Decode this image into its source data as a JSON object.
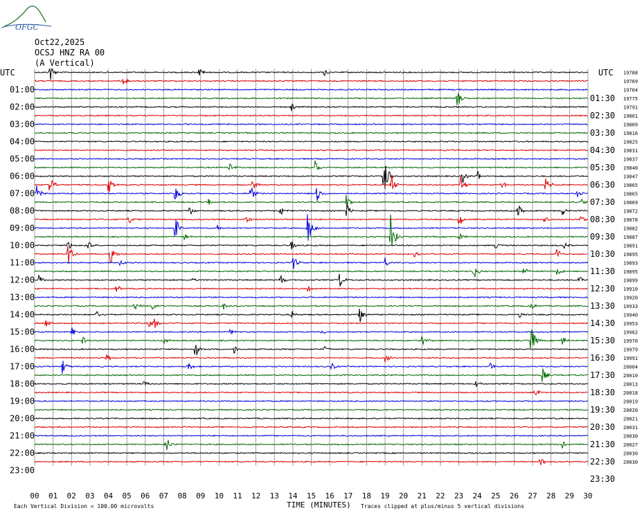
{
  "header": {
    "logo_text": "OFGC",
    "date": "Oct22,2025",
    "station": "OCSJ HNZ RA 00",
    "component": "(A Vertical)"
  },
  "chart_data": {
    "type": "line",
    "title": "",
    "left_axis_label": "UTC",
    "right_axis_label": "UTC",
    "xlabel": "TIME (MINUTES)",
    "xlim": [
      0,
      30
    ],
    "x_ticks": [
      "00",
      "01",
      "02",
      "03",
      "04",
      "05",
      "06",
      "07",
      "08",
      "09",
      "10",
      "11",
      "12",
      "13",
      "14",
      "15",
      "16",
      "17",
      "18",
      "19",
      "20",
      "21",
      "22",
      "23",
      "24",
      "25",
      "26",
      "27",
      "28",
      "29",
      "30"
    ],
    "grid": true,
    "trace_colors": [
      "#000000",
      "#dd0000",
      "#0000dd",
      "#006600"
    ],
    "left_hour_labels": [
      "01:00",
      "02:00",
      "03:00",
      "04:00",
      "05:00",
      "06:00",
      "07:00",
      "08:00",
      "09:00",
      "10:00",
      "11:00",
      "12:00",
      "13:00",
      "14:00",
      "15:00",
      "16:00",
      "17:00",
      "18:00",
      "19:00",
      "20:00",
      "21:00",
      "22:00",
      "23:00"
    ],
    "right_hour_labels": [
      "01:30",
      "02:30",
      "03:30",
      "04:30",
      "05:30",
      "06:30",
      "07:30",
      "08:30",
      "09:30",
      "10:30",
      "11:30",
      "12:30",
      "13:30",
      "14:30",
      "15:30",
      "16:30",
      "17:30",
      "18:30",
      "19:30",
      "20:30",
      "21:30",
      "22:30",
      "23:30"
    ],
    "trace_counts": [
      "19788",
      "19769",
      "19764",
      "19775",
      "19791",
      "19801",
      "19809",
      "19816",
      "19825",
      "19831",
      "19837",
      "19840",
      "19847",
      "19865",
      "19865",
      "19869",
      "19872",
      "19878",
      "19882",
      "19887",
      "19891",
      "19895",
      "19893",
      "19895",
      "19899",
      "19910",
      "19920",
      "19933",
      "19940",
      "19953",
      "19962",
      "19970",
      "19979",
      "19991",
      "20004",
      "20010",
      "20013",
      "20018",
      "20019",
      "20020",
      "20021",
      "20031",
      "20030",
      "20027",
      "20030",
      "20030"
    ],
    "events": [
      {
        "trace": 0,
        "minute": 0.8,
        "amp": 1.6
      },
      {
        "trace": 0,
        "minute": 8.9,
        "amp": 0.6
      },
      {
        "trace": 0,
        "minute": 15.7,
        "amp": 0.5
      },
      {
        "trace": 1,
        "minute": 4.8,
        "amp": 1.0
      },
      {
        "trace": 3,
        "minute": 22.9,
        "amp": 1.3
      },
      {
        "trace": 4,
        "minute": 13.9,
        "amp": 0.8
      },
      {
        "trace": 11,
        "minute": 10.5,
        "amp": 0.8
      },
      {
        "trace": 11,
        "minute": 15.2,
        "amp": 0.8
      },
      {
        "trace": 12,
        "minute": 18.9,
        "amp": 3.5
      },
      {
        "trace": 12,
        "minute": 23.2,
        "amp": 0.8
      },
      {
        "trace": 12,
        "minute": 24.0,
        "amp": 0.7
      },
      {
        "trace": 13,
        "minute": 0.8,
        "amp": 1.2
      },
      {
        "trace": 13,
        "minute": 4.0,
        "amp": 1.4
      },
      {
        "trace": 13,
        "minute": 11.8,
        "amp": 0.9
      },
      {
        "trace": 13,
        "minute": 19.3,
        "amp": 2.5
      },
      {
        "trace": 13,
        "minute": 23.1,
        "amp": 1.0
      },
      {
        "trace": 13,
        "minute": 25.3,
        "amp": 0.6
      },
      {
        "trace": 13,
        "minute": 27.7,
        "amp": 1.6
      },
      {
        "trace": 14,
        "minute": 0.1,
        "amp": 1.0
      },
      {
        "trace": 14,
        "minute": 7.6,
        "amp": 1.2
      },
      {
        "trace": 14,
        "minute": 11.7,
        "amp": 1.2
      },
      {
        "trace": 14,
        "minute": 15.3,
        "amp": 1.2
      },
      {
        "trace": 14,
        "minute": 29.4,
        "amp": 0.9
      },
      {
        "trace": 15,
        "minute": 9.4,
        "amp": 0.4
      },
      {
        "trace": 15,
        "minute": 16.9,
        "amp": 1.1
      },
      {
        "trace": 15,
        "minute": 29.6,
        "amp": 0.5
      },
      {
        "trace": 16,
        "minute": 8.4,
        "amp": 0.6
      },
      {
        "trace": 16,
        "minute": 13.3,
        "amp": 0.8
      },
      {
        "trace": 16,
        "minute": 16.9,
        "amp": 1.2
      },
      {
        "trace": 16,
        "minute": 26.2,
        "amp": 0.9
      },
      {
        "trace": 16,
        "minute": 28.6,
        "amp": 0.6
      },
      {
        "trace": 17,
        "minute": 5.1,
        "amp": 0.6
      },
      {
        "trace": 17,
        "minute": 11.4,
        "amp": 0.7
      },
      {
        "trace": 17,
        "minute": 23.0,
        "amp": 1.0
      },
      {
        "trace": 17,
        "minute": 27.6,
        "amp": 0.6
      },
      {
        "trace": 17,
        "minute": 29.6,
        "amp": 0.6
      },
      {
        "trace": 18,
        "minute": 7.6,
        "amp": 1.6
      },
      {
        "trace": 18,
        "minute": 9.9,
        "amp": 0.6
      },
      {
        "trace": 18,
        "minute": 14.8,
        "amp": 2.4
      },
      {
        "trace": 19,
        "minute": 8.1,
        "amp": 0.6
      },
      {
        "trace": 19,
        "minute": 19.3,
        "amp": 3.2
      },
      {
        "trace": 19,
        "minute": 23.0,
        "amp": 0.6
      },
      {
        "trace": 20,
        "minute": 1.8,
        "amp": 0.8
      },
      {
        "trace": 20,
        "minute": 2.9,
        "amp": 0.6
      },
      {
        "trace": 20,
        "minute": 13.9,
        "amp": 0.7
      },
      {
        "trace": 20,
        "minute": 25.0,
        "amp": 0.6
      },
      {
        "trace": 20,
        "minute": 28.7,
        "amp": 0.5
      },
      {
        "trace": 21,
        "minute": 1.8,
        "amp": 1.6
      },
      {
        "trace": 21,
        "minute": 4.1,
        "amp": 1.4
      },
      {
        "trace": 21,
        "minute": 20.6,
        "amp": 0.4
      },
      {
        "trace": 21,
        "minute": 28.3,
        "amp": 0.7
      },
      {
        "trace": 22,
        "minute": 4.6,
        "amp": 0.8
      },
      {
        "trace": 22,
        "minute": 14.0,
        "amp": 1.0
      },
      {
        "trace": 22,
        "minute": 19.0,
        "amp": 0.6
      },
      {
        "trace": 23,
        "minute": 23.8,
        "amp": 1.2
      },
      {
        "trace": 23,
        "minute": 26.5,
        "amp": 0.9
      },
      {
        "trace": 23,
        "minute": 28.3,
        "amp": 0.8
      },
      {
        "trace": 24,
        "minute": 0.2,
        "amp": 0.8
      },
      {
        "trace": 24,
        "minute": 8.5,
        "amp": 0.4
      },
      {
        "trace": 24,
        "minute": 13.3,
        "amp": 1.0
      },
      {
        "trace": 24,
        "minute": 16.5,
        "amp": 1.2
      },
      {
        "trace": 24,
        "minute": 29.5,
        "amp": 0.6
      },
      {
        "trace": 25,
        "minute": 4.4,
        "amp": 0.6
      },
      {
        "trace": 25,
        "minute": 14.8,
        "amp": 0.4
      },
      {
        "trace": 27,
        "minute": 5.4,
        "amp": 0.7
      },
      {
        "trace": 27,
        "minute": 6.4,
        "amp": 0.6
      },
      {
        "trace": 27,
        "minute": 10.2,
        "amp": 0.5
      },
      {
        "trace": 27,
        "minute": 26.9,
        "amp": 0.6
      },
      {
        "trace": 28,
        "minute": 3.3,
        "amp": 0.6
      },
      {
        "trace": 28,
        "minute": 13.9,
        "amp": 0.7
      },
      {
        "trace": 28,
        "minute": 17.6,
        "amp": 1.2
      },
      {
        "trace": 28,
        "minute": 26.3,
        "amp": 0.4
      },
      {
        "trace": 29,
        "minute": 0.6,
        "amp": 0.6
      },
      {
        "trace": 29,
        "minute": 6.5,
        "amp": 0.9
      },
      {
        "trace": 29,
        "minute": 6.2,
        "amp": 0.6
      },
      {
        "trace": 30,
        "minute": 2.0,
        "amp": 0.6
      },
      {
        "trace": 30,
        "minute": 15.5,
        "amp": 0.5
      },
      {
        "trace": 30,
        "minute": 10.6,
        "amp": 0.4
      },
      {
        "trace": 31,
        "minute": 2.6,
        "amp": 0.6
      },
      {
        "trace": 31,
        "minute": 7.0,
        "amp": 0.4
      },
      {
        "trace": 31,
        "minute": 21.0,
        "amp": 0.7
      },
      {
        "trace": 31,
        "minute": 26.9,
        "amp": 2.2
      },
      {
        "trace": 31,
        "minute": 28.6,
        "amp": 0.7
      },
      {
        "trace": 32,
        "minute": 8.7,
        "amp": 1.2
      },
      {
        "trace": 32,
        "minute": 10.8,
        "amp": 0.6
      },
      {
        "trace": 32,
        "minute": 15.7,
        "amp": 0.4
      },
      {
        "trace": 33,
        "minute": 3.9,
        "amp": 0.5
      },
      {
        "trace": 33,
        "minute": 19.0,
        "amp": 0.5
      },
      {
        "trace": 34,
        "minute": 1.5,
        "amp": 0.9
      },
      {
        "trace": 34,
        "minute": 8.3,
        "amp": 0.7
      },
      {
        "trace": 34,
        "minute": 16.1,
        "amp": 0.5
      },
      {
        "trace": 34,
        "minute": 24.7,
        "amp": 0.5
      },
      {
        "trace": 35,
        "minute": 27.5,
        "amp": 1.1
      },
      {
        "trace": 36,
        "minute": 5.9,
        "amp": 0.6
      },
      {
        "trace": 36,
        "minute": 23.9,
        "amp": 0.5
      },
      {
        "trace": 37,
        "minute": 27.1,
        "amp": 0.9
      },
      {
        "trace": 43,
        "minute": 7.1,
        "amp": 1.0
      },
      {
        "trace": 43,
        "minute": 7.0,
        "amp": 0.6
      },
      {
        "trace": 43,
        "minute": 28.6,
        "amp": 0.5
      },
      {
        "trace": 45,
        "minute": 27.4,
        "amp": 0.6
      }
    ]
  },
  "footer": {
    "note_left": "Each Vertical Division =  100.00 microvolts",
    "note_right": "Traces clipped at plus/minus 5 vertical divisions"
  }
}
